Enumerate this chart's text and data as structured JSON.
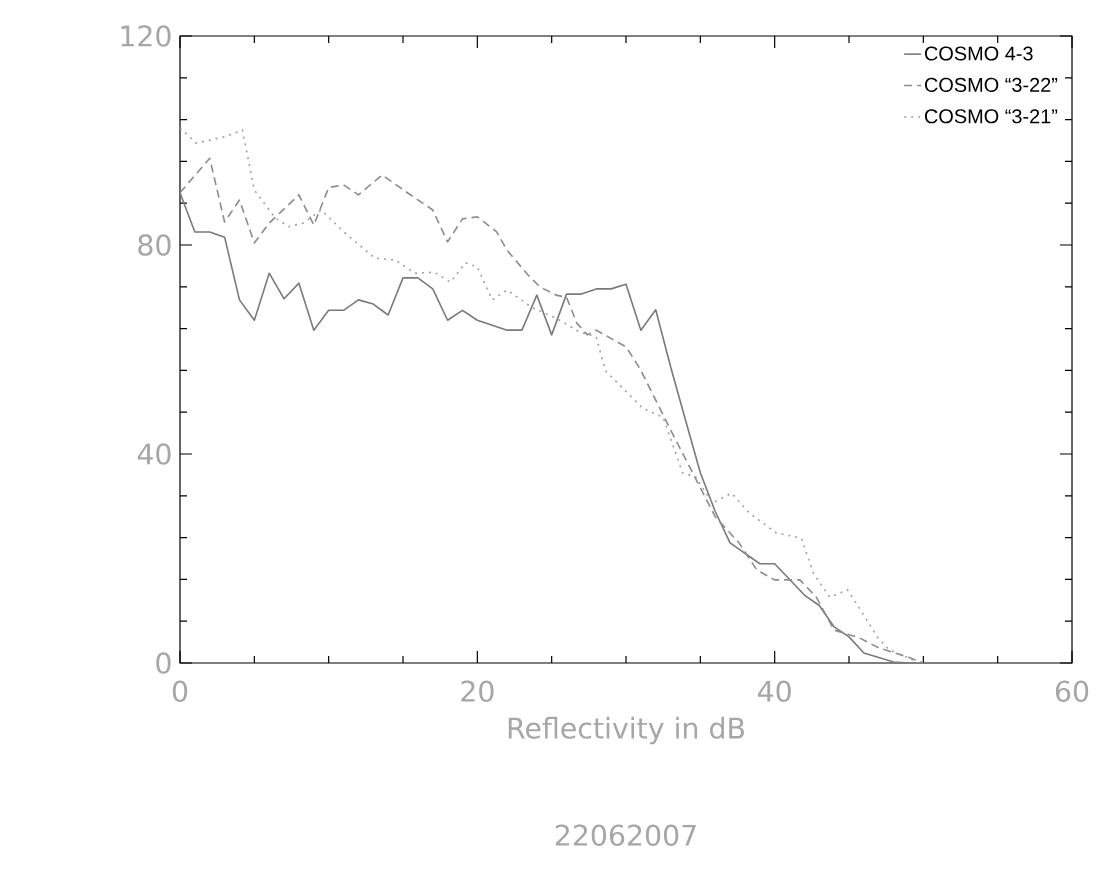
{
  "chart_data": {
    "type": "line",
    "xlabel": "Reflectivity in dB",
    "annotations": [
      "22062007"
    ],
    "xlim": [
      0,
      60
    ],
    "ylim": [
      0,
      120
    ],
    "xticks": [
      0,
      20,
      40,
      60
    ],
    "yticks": [
      0,
      40,
      80,
      120
    ],
    "legend": "top right",
    "series": [
      {
        "name": "COSMO 4-3",
        "color": "#7a7a7a",
        "line_style": "solid",
        "x": [
          0,
          1,
          2,
          3,
          4,
          5,
          6,
          7,
          8,
          9,
          10,
          11,
          12,
          13,
          14,
          15,
          16,
          17,
          18,
          19,
          20,
          22,
          23,
          24,
          25,
          26,
          27,
          28,
          29,
          30,
          31,
          32,
          33,
          34,
          35,
          36,
          37,
          39,
          40,
          42,
          43,
          44,
          45,
          46,
          48,
          49
        ],
        "values": [
          90,
          82.5,
          82.5,
          81.5,
          69.5,
          65.6,
          74.6,
          69.7,
          72.7,
          63.7,
          67.5,
          67.5,
          69.5,
          68.7,
          66.6,
          73.7,
          73.7,
          71.6,
          65.6,
          67.5,
          65.6,
          63.7,
          63.7,
          70.4,
          62.8,
          70.6,
          70.6,
          71.6,
          71.6,
          72.5,
          63.7,
          67.6,
          56.7,
          46.5,
          36.4,
          29,
          23,
          19,
          19,
          13,
          11,
          6.9,
          5,
          1.9,
          0.2,
          0
        ]
      },
      {
        "name": "COSMO “3-22”",
        "color": "#8c8c8c",
        "line_style": "dashed",
        "x": [
          0,
          2,
          3,
          4,
          5,
          6,
          8,
          9,
          10,
          11,
          12,
          13.6,
          15.3,
          17,
          18,
          19,
          20,
          21.3,
          22,
          23.4,
          24.2,
          25.3,
          26,
          26.7,
          27.4,
          28,
          30,
          30.7,
          31,
          33,
          36,
          37.6,
          38.8,
          40,
          41.7,
          42.8,
          44,
          45.7,
          47,
          49,
          50
        ],
        "values": [
          90,
          96.6,
          84.4,
          88.6,
          80.4,
          84.2,
          89.6,
          83.8,
          91,
          91.5,
          89.6,
          93.4,
          90,
          86.7,
          80.6,
          85,
          85.4,
          82.5,
          79,
          74.3,
          72,
          70.4,
          70,
          65,
          62.8,
          63.7,
          60.5,
          57.4,
          56,
          44.6,
          28,
          23,
          17.8,
          15.9,
          15.9,
          12.6,
          6.3,
          4.8,
          2.9,
          1.1,
          0
        ]
      },
      {
        "name": "COSMO “3-21”",
        "color": "#a0a0a0",
        "line_style": "dotted",
        "x": [
          0,
          1.1,
          3,
          4.2,
          5,
          6.4,
          7.3,
          8.3,
          9.5,
          11.1,
          13.1,
          14.5,
          15.8,
          17.1,
          18.2,
          19.2,
          20,
          21,
          22,
          23.7,
          25.3,
          26.9,
          28,
          28.6,
          31.1,
          32.5,
          33.8,
          34.7,
          35.8,
          37.1,
          38.3,
          40.1,
          41.8,
          42.6,
          43.7,
          44.9,
          45.9,
          46.9,
          47.7,
          48.9,
          49.7
        ],
        "values": [
          102.4,
          99.5,
          100.7,
          102,
          90.5,
          85.2,
          83.5,
          84.2,
          86.7,
          82.3,
          77.5,
          77.1,
          74.6,
          74.8,
          72.9,
          76.6,
          75.8,
          69.5,
          71.4,
          68,
          66,
          63.3,
          62.4,
          56,
          48.8,
          47,
          36.4,
          35.6,
          30.6,
          32.5,
          28.7,
          24.9,
          23.9,
          17.2,
          12.6,
          14,
          9.6,
          5,
          2.5,
          1.1,
          0
        ]
      }
    ]
  }
}
